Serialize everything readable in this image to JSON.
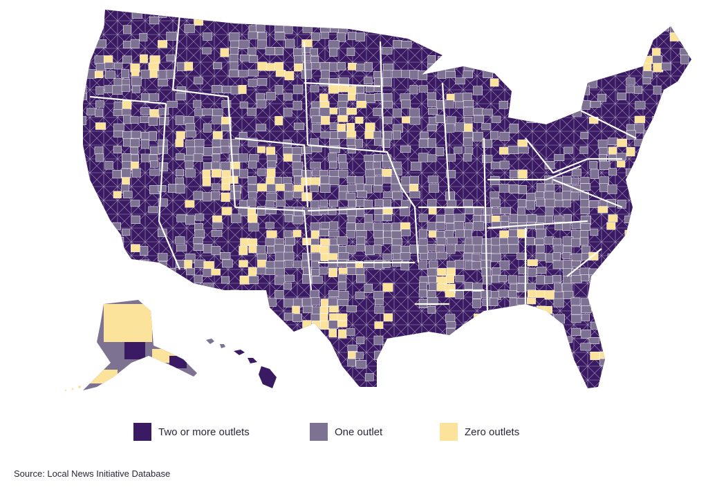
{
  "map": {
    "colors": {
      "two_or_more": "#3a1a63",
      "one": "#7d7292",
      "zero": "#fbe39b",
      "border": "#ffffff"
    }
  },
  "legend": [
    {
      "label": "Two or more outlets",
      "color": "#3a1a63"
    },
    {
      "label": "One outlet",
      "color": "#7d7292"
    },
    {
      "label": "Zero outlets",
      "color": "#fbe39b"
    }
  ],
  "source": "Source: Local News Initiative Database"
}
